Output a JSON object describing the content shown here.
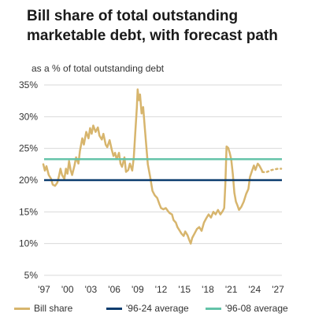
{
  "title": "Bill share of total outstanding marketable debt, with forecast path",
  "colors": {
    "bill_share": "#D7B56D",
    "avg_96_24": "#0B3C6E",
    "avg_96_08": "#63C3A8",
    "grid": "#d9d9d9"
  },
  "chart_data": {
    "type": "line",
    "title": "Bill share of total outstanding marketable debt, with forecast path",
    "ylabel": "as a % of total outstanding debt",
    "xlabel": "",
    "ylim": [
      5,
      35
    ],
    "xlim": [
      1997,
      2027.5
    ],
    "yticks": [
      5,
      10,
      15,
      20,
      25,
      30,
      35
    ],
    "ytick_labels": [
      "5%",
      "10%",
      "15%",
      "20%",
      "25%",
      "30%",
      "35%"
    ],
    "xticks": [
      1997,
      2000,
      2003,
      2006,
      2009,
      2012,
      2015,
      2018,
      2021,
      2024,
      2027
    ],
    "xtick_labels": [
      "'97",
      "'00",
      "'03",
      "'06",
      "'09",
      "'12",
      "'15",
      "'18",
      "'21",
      "'24",
      "'27"
    ],
    "grid": true,
    "legend_position": "bottom",
    "series": [
      {
        "name": "Bill share",
        "style": "solid",
        "points": [
          [
            1996.9,
            22.5
          ],
          [
            1997.1,
            21.5
          ],
          [
            1997.3,
            22.2
          ],
          [
            1997.6,
            20.8
          ],
          [
            1997.9,
            20.2
          ],
          [
            1998.1,
            19.3
          ],
          [
            1998.4,
            19.1
          ],
          [
            1998.7,
            19.6
          ],
          [
            1998.9,
            20.6
          ],
          [
            1999.1,
            21.8
          ],
          [
            1999.3,
            20.8
          ],
          [
            1999.6,
            20.2
          ],
          [
            1999.8,
            21.8
          ],
          [
            2000.0,
            21.0
          ],
          [
            2000.2,
            23.0
          ],
          [
            2000.4,
            21.6
          ],
          [
            2000.6,
            20.8
          ],
          [
            2000.9,
            22.3
          ],
          [
            2001.1,
            23.6
          ],
          [
            2001.4,
            22.6
          ],
          [
            2001.6,
            24.6
          ],
          [
            2001.9,
            26.6
          ],
          [
            2002.1,
            25.6
          ],
          [
            2002.4,
            27.6
          ],
          [
            2002.7,
            26.6
          ],
          [
            2002.9,
            28.2
          ],
          [
            2003.1,
            27.3
          ],
          [
            2003.3,
            28.6
          ],
          [
            2003.6,
            27.6
          ],
          [
            2003.9,
            28.3
          ],
          [
            2004.1,
            27.0
          ],
          [
            2004.4,
            26.4
          ],
          [
            2004.6,
            27.3
          ],
          [
            2004.9,
            25.6
          ],
          [
            2005.1,
            25.2
          ],
          [
            2005.4,
            26.3
          ],
          [
            2005.7,
            24.7
          ],
          [
            2005.9,
            23.8
          ],
          [
            2006.1,
            24.3
          ],
          [
            2006.3,
            23.3
          ],
          [
            2006.6,
            24.3
          ],
          [
            2006.8,
            22.6
          ],
          [
            2007.0,
            22.1
          ],
          [
            2007.3,
            23.6
          ],
          [
            2007.5,
            21.3
          ],
          [
            2007.8,
            21.6
          ],
          [
            2008.0,
            22.6
          ],
          [
            2008.3,
            21.5
          ],
          [
            2008.5,
            23.6
          ],
          [
            2008.7,
            27.5
          ],
          [
            2008.9,
            31.5
          ],
          [
            2009.0,
            34.3
          ],
          [
            2009.15,
            32.6
          ],
          [
            2009.3,
            33.5
          ],
          [
            2009.5,
            30.5
          ],
          [
            2009.7,
            31.5
          ],
          [
            2009.9,
            28.5
          ],
          [
            2010.1,
            25.5
          ],
          [
            2010.3,
            22.5
          ],
          [
            2010.6,
            20.5
          ],
          [
            2010.9,
            18.3
          ],
          [
            2011.2,
            17.6
          ],
          [
            2011.5,
            17.2
          ],
          [
            2011.8,
            16.2
          ],
          [
            2012.0,
            15.6
          ],
          [
            2012.3,
            15.4
          ],
          [
            2012.6,
            15.6
          ],
          [
            2012.9,
            15.1
          ],
          [
            2013.1,
            14.8
          ],
          [
            2013.4,
            14.6
          ],
          [
            2013.6,
            13.7
          ],
          [
            2013.9,
            13.3
          ],
          [
            2014.1,
            12.6
          ],
          [
            2014.4,
            12.0
          ],
          [
            2014.6,
            11.6
          ],
          [
            2014.9,
            11.2
          ],
          [
            2015.1,
            11.9
          ],
          [
            2015.4,
            11.3
          ],
          [
            2015.6,
            10.6
          ],
          [
            2015.8,
            10.0
          ],
          [
            2016.0,
            10.9
          ],
          [
            2016.3,
            11.6
          ],
          [
            2016.6,
            12.3
          ],
          [
            2016.9,
            12.6
          ],
          [
            2017.2,
            12.0
          ],
          [
            2017.5,
            13.3
          ],
          [
            2017.8,
            14.0
          ],
          [
            2018.1,
            14.6
          ],
          [
            2018.4,
            14.1
          ],
          [
            2018.7,
            15.0
          ],
          [
            2019.0,
            14.6
          ],
          [
            2019.3,
            15.3
          ],
          [
            2019.6,
            14.6
          ],
          [
            2019.9,
            15.1
          ],
          [
            2020.1,
            15.6
          ],
          [
            2020.25,
            19.5
          ],
          [
            2020.4,
            25.3
          ],
          [
            2020.6,
            25.1
          ],
          [
            2020.8,
            24.3
          ],
          [
            2021.0,
            23.3
          ],
          [
            2021.2,
            21.0
          ],
          [
            2021.4,
            18.0
          ],
          [
            2021.6,
            16.6
          ],
          [
            2021.8,
            16.0
          ],
          [
            2022.0,
            15.3
          ],
          [
            2022.3,
            15.8
          ],
          [
            2022.6,
            16.6
          ],
          [
            2022.9,
            17.8
          ],
          [
            2023.2,
            18.6
          ],
          [
            2023.4,
            20.5
          ],
          [
            2023.7,
            21.6
          ],
          [
            2023.9,
            22.3
          ],
          [
            2024.1,
            21.6
          ],
          [
            2024.4,
            22.6
          ],
          [
            2024.6,
            22.3
          ],
          [
            2024.9,
            21.6
          ],
          [
            2025.0,
            21.3
          ]
        ]
      },
      {
        "name": "Forecast path",
        "style": "dotted",
        "points": [
          [
            2025.0,
            21.3
          ],
          [
            2025.4,
            21.2
          ],
          [
            2025.8,
            21.4
          ],
          [
            2026.2,
            21.6
          ],
          [
            2026.6,
            21.7
          ],
          [
            2027.0,
            21.8
          ],
          [
            2027.4,
            21.8
          ]
        ]
      },
      {
        "name": "'96-24 average",
        "style": "solid",
        "constant": 20.0
      },
      {
        "name": "'96-08 average",
        "style": "solid",
        "constant": 23.3
      }
    ]
  },
  "legend": {
    "items": [
      {
        "label": "Bill share",
        "color": "#D7B56D"
      },
      {
        "label": "'96-24 average",
        "color": "#0B3C6E"
      },
      {
        "label": "'96-08 average",
        "color": "#63C3A8"
      }
    ]
  }
}
